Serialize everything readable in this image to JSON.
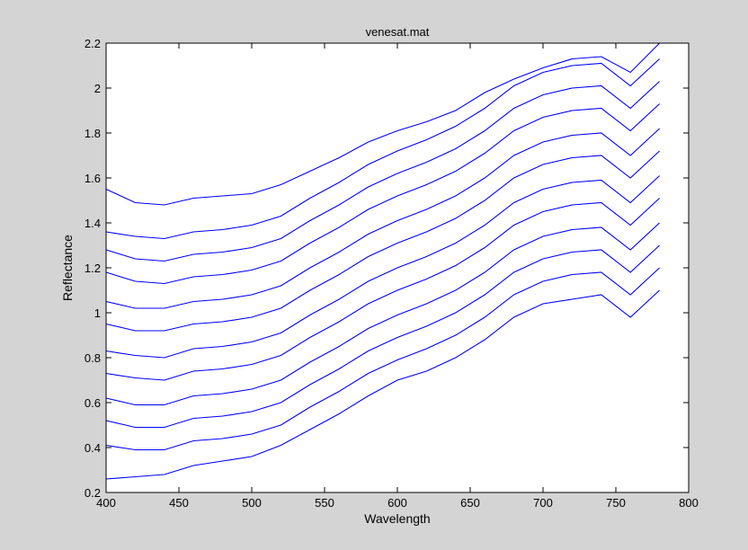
{
  "chart_data": {
    "type": "line",
    "title": "venesat.mat",
    "xlabel": "Wavelength",
    "ylabel": "Reflectance",
    "xlim": [
      400,
      800
    ],
    "ylim": [
      0.2,
      2.2
    ],
    "xticks": [
      400,
      450,
      500,
      550,
      600,
      650,
      700,
      750,
      800
    ],
    "yticks": [
      0.2,
      0.4,
      0.6,
      0.8,
      1,
      1.2,
      1.4,
      1.6,
      1.8,
      2,
      2.2
    ],
    "xtick_labels": [
      "400",
      "450",
      "500",
      "550",
      "600",
      "650",
      "700",
      "750",
      "800"
    ],
    "ytick_labels": [
      "0.2",
      "0.4",
      "0.6",
      "0.8",
      "1",
      "1.2",
      "1.4",
      "1.6",
      "1.8",
      "2",
      "2.2"
    ],
    "grid": false,
    "line_color": "#0000ff",
    "figure_background": "#d4d4d4",
    "x": [
      400,
      420,
      440,
      460,
      480,
      500,
      520,
      540,
      560,
      580,
      600,
      620,
      640,
      660,
      680,
      700,
      720,
      740,
      760,
      780
    ],
    "series": [
      {
        "values": [
          0.26,
          0.27,
          0.28,
          0.32,
          0.34,
          0.36,
          0.41,
          0.48,
          0.55,
          0.63,
          0.7,
          0.74,
          0.8,
          0.88,
          0.98,
          1.04,
          1.06,
          1.08,
          0.98,
          1.1
        ]
      },
      {
        "values": [
          0.41,
          0.39,
          0.39,
          0.43,
          0.44,
          0.46,
          0.5,
          0.58,
          0.65,
          0.73,
          0.79,
          0.84,
          0.9,
          0.98,
          1.08,
          1.14,
          1.17,
          1.18,
          1.08,
          1.2
        ]
      },
      {
        "values": [
          0.52,
          0.49,
          0.49,
          0.53,
          0.54,
          0.56,
          0.6,
          0.68,
          0.75,
          0.83,
          0.89,
          0.94,
          1.0,
          1.08,
          1.18,
          1.24,
          1.27,
          1.28,
          1.18,
          1.3
        ]
      },
      {
        "values": [
          0.62,
          0.59,
          0.59,
          0.63,
          0.64,
          0.66,
          0.7,
          0.78,
          0.85,
          0.93,
          0.99,
          1.04,
          1.1,
          1.18,
          1.28,
          1.34,
          1.37,
          1.38,
          1.28,
          1.4
        ]
      },
      {
        "values": [
          0.73,
          0.71,
          0.7,
          0.74,
          0.75,
          0.77,
          0.81,
          0.89,
          0.96,
          1.04,
          1.1,
          1.15,
          1.21,
          1.29,
          1.39,
          1.45,
          1.48,
          1.49,
          1.39,
          1.51
        ]
      },
      {
        "values": [
          0.83,
          0.81,
          0.8,
          0.84,
          0.85,
          0.87,
          0.91,
          0.99,
          1.06,
          1.14,
          1.2,
          1.25,
          1.31,
          1.39,
          1.49,
          1.55,
          1.58,
          1.59,
          1.49,
          1.61
        ]
      },
      {
        "values": [
          0.95,
          0.92,
          0.92,
          0.95,
          0.96,
          0.98,
          1.02,
          1.1,
          1.17,
          1.25,
          1.31,
          1.36,
          1.42,
          1.5,
          1.6,
          1.66,
          1.69,
          1.7,
          1.6,
          1.72
        ]
      },
      {
        "values": [
          1.05,
          1.02,
          1.02,
          1.05,
          1.06,
          1.08,
          1.12,
          1.2,
          1.27,
          1.35,
          1.41,
          1.46,
          1.52,
          1.6,
          1.7,
          1.76,
          1.79,
          1.8,
          1.7,
          1.82
        ]
      },
      {
        "values": [
          1.18,
          1.14,
          1.13,
          1.16,
          1.17,
          1.19,
          1.23,
          1.31,
          1.38,
          1.46,
          1.52,
          1.57,
          1.63,
          1.71,
          1.81,
          1.87,
          1.9,
          1.91,
          1.81,
          1.93
        ]
      },
      {
        "values": [
          1.28,
          1.24,
          1.23,
          1.26,
          1.27,
          1.29,
          1.33,
          1.41,
          1.48,
          1.56,
          1.62,
          1.67,
          1.73,
          1.81,
          1.91,
          1.97,
          2.0,
          2.01,
          1.91,
          2.03
        ]
      },
      {
        "values": [
          1.36,
          1.34,
          1.33,
          1.36,
          1.37,
          1.39,
          1.43,
          1.51,
          1.58,
          1.66,
          1.72,
          1.77,
          1.83,
          1.91,
          2.01,
          2.07,
          2.1,
          2.11,
          2.01,
          2.13
        ]
      },
      {
        "values": [
          1.55,
          1.49,
          1.48,
          1.51,
          1.52,
          1.53,
          1.57,
          1.63,
          1.69,
          1.76,
          1.81,
          1.85,
          1.9,
          1.98,
          2.04,
          2.09,
          2.13,
          2.14,
          2.07,
          2.2
        ]
      }
    ]
  }
}
